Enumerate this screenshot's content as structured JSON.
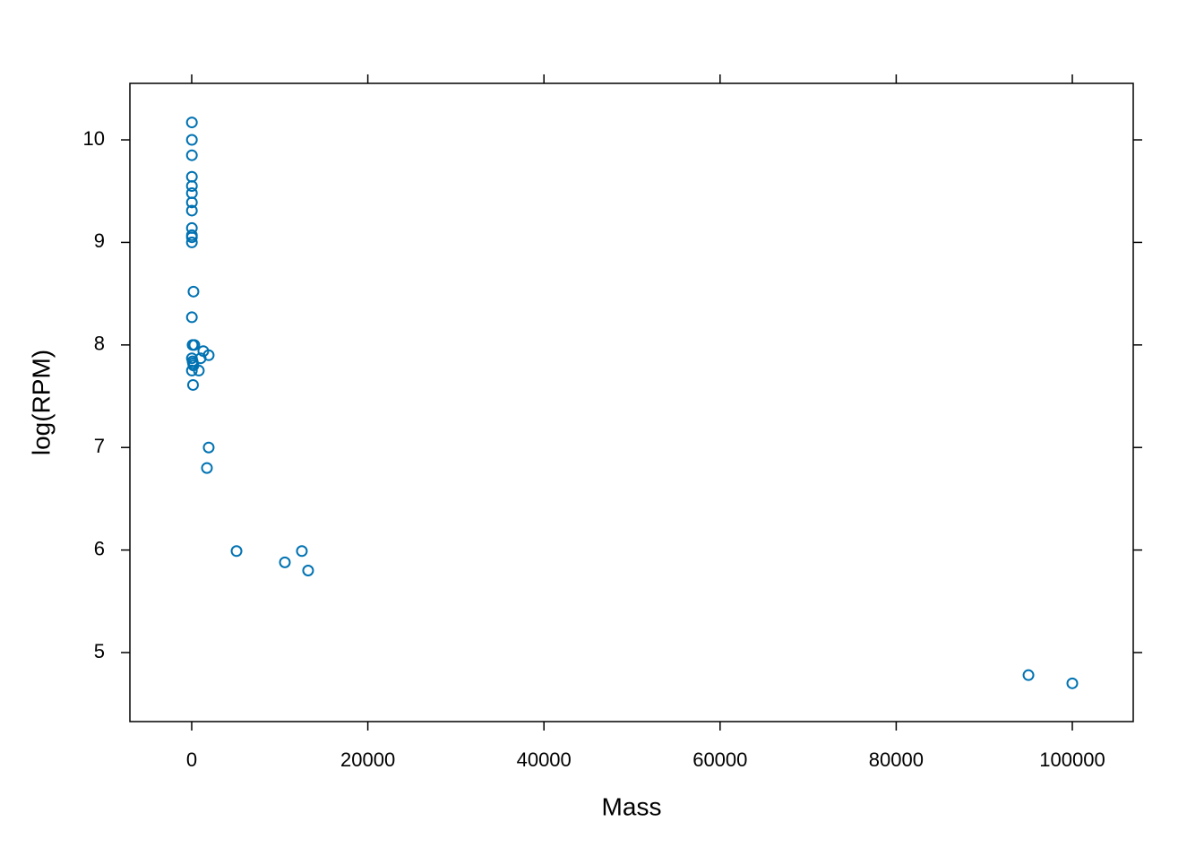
{
  "chart_data": {
    "type": "scatter",
    "x_label": "Mass",
    "y_label": "log(RPM)",
    "color": "#0072b2",
    "xlim": [
      -7019,
      106917
    ],
    "ylim": [
      4.327,
      10.551
    ],
    "xticks": [
      0,
      20000,
      40000,
      60000,
      80000,
      100000
    ],
    "yticks": [
      5,
      6,
      7,
      8,
      9,
      10
    ],
    "series": [
      {
        "x": [
          20,
          20,
          20,
          20,
          20,
          20,
          20,
          20,
          20,
          20,
          20,
          20,
          200,
          20,
          100,
          300,
          1320,
          1930,
          20,
          1020,
          100,
          150,
          200,
          810,
          20,
          150,
          1930,
          1730,
          5090,
          10580,
          12510,
          13220,
          95020,
          100000
        ],
        "values": [
          10.17,
          10.0,
          9.85,
          9.64,
          9.55,
          9.48,
          9.39,
          9.31,
          9.14,
          9.07,
          9.05,
          9.0,
          8.52,
          8.27,
          8.0,
          8.0,
          7.94,
          7.9,
          7.87,
          7.87,
          7.84,
          7.82,
          7.8,
          7.75,
          7.75,
          7.61,
          7.0,
          6.8,
          5.99,
          5.88,
          5.99,
          5.8,
          4.78,
          4.7
        ]
      }
    ]
  }
}
